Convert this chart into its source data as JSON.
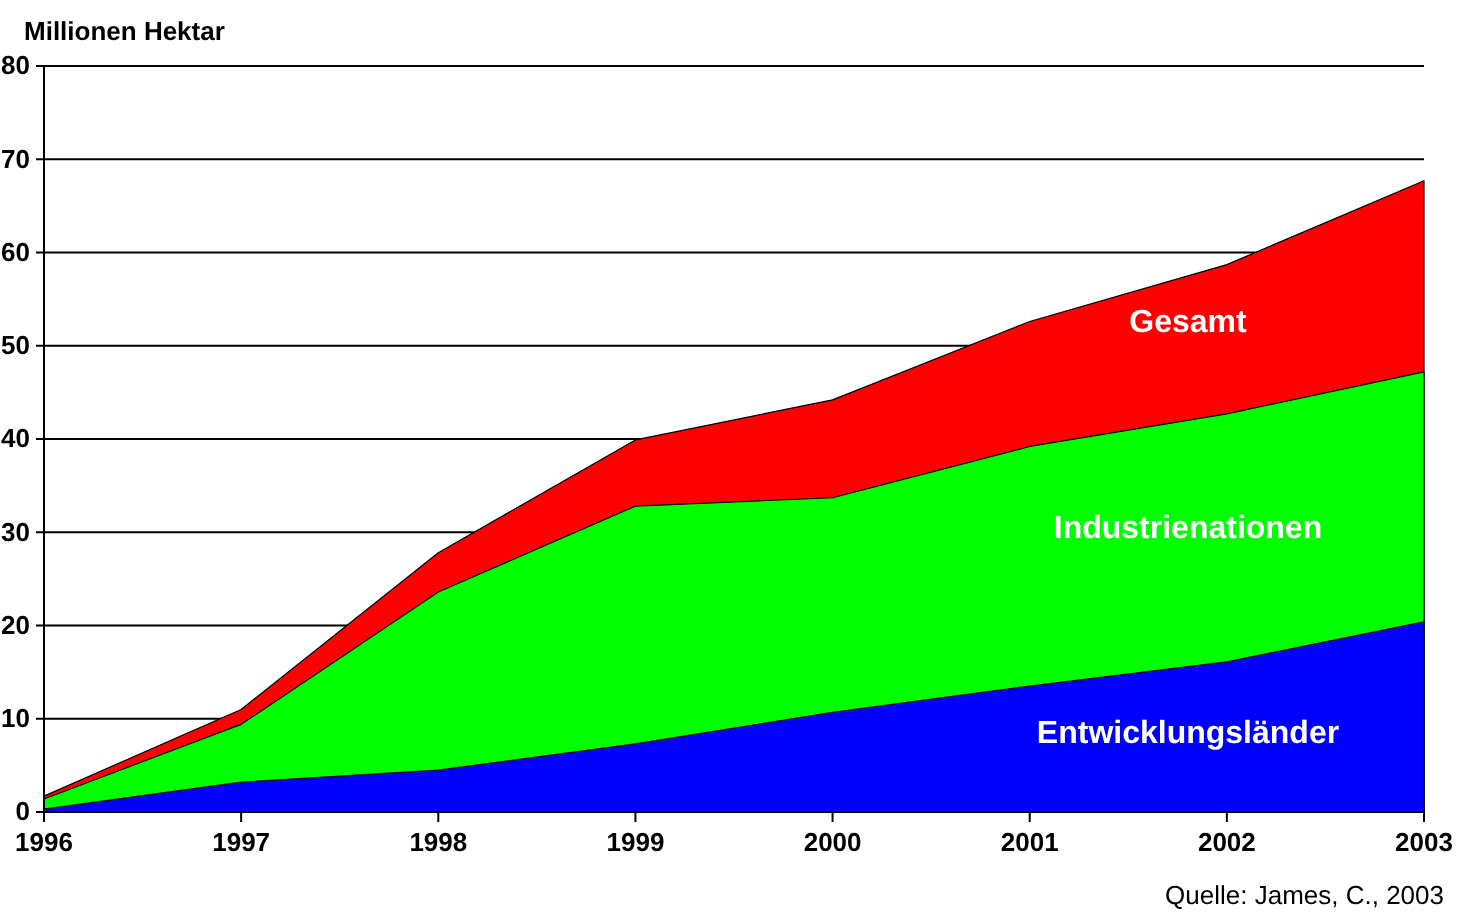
{
  "chart_data": {
    "type": "area",
    "ylabel": "Millionen Hektar",
    "categories": [
      "1996",
      "1997",
      "1998",
      "1999",
      "2000",
      "2001",
      "2002",
      "2003"
    ],
    "series": [
      {
        "name": "Gesamt",
        "color": "#ff0000",
        "values": [
          1.7,
          11.0,
          27.8,
          39.9,
          44.2,
          52.6,
          58.7,
          67.7
        ]
      },
      {
        "name": "Industrienationen",
        "color": "#00ff00",
        "values": [
          1.4,
          9.4,
          23.6,
          32.8,
          33.7,
          39.2,
          42.7,
          47.2
        ]
      },
      {
        "name": "Entwicklungsländer",
        "color": "#0000ff",
        "values": [
          0.3,
          3.2,
          4.5,
          7.3,
          10.7,
          13.5,
          16.1,
          20.4
        ]
      }
    ],
    "ylim": [
      0,
      80
    ],
    "yticks": [
      0,
      10,
      20,
      30,
      40,
      50,
      60,
      70,
      80
    ],
    "grid": "y",
    "annotations": [
      "Quelle: James, C., 2003"
    ]
  }
}
